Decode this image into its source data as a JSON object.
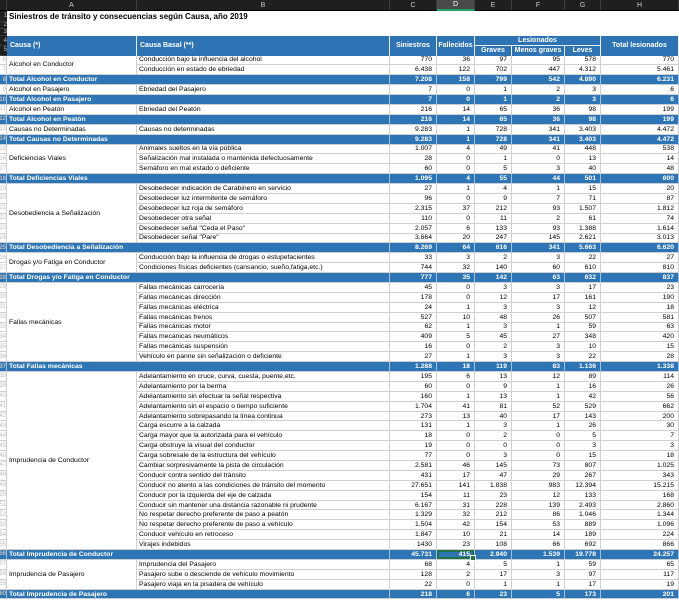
{
  "app": {
    "kind": "spreadsheet"
  },
  "column_bar": {
    "letters": [
      "A",
      "B",
      "C",
      "D",
      "E",
      "F",
      "G",
      "H"
    ],
    "selected": "D"
  },
  "title": "Siniestros de tránsito y consecuencias según Causa, año 2019",
  "colors": {
    "header_blue": "#2e74b5",
    "total_blue": "#2e75b6",
    "selection_green": "#217346",
    "bar_dark": "#1f1f1f",
    "gridline": "#d0d0d0"
  },
  "table": {
    "headers": {
      "causa": "Causa (*)",
      "causa_basal": "Causa Basal (**)",
      "siniestros": "Siniestros",
      "fallecidos": "Fallecidos",
      "lesionados": "Lesionados",
      "graves": "Graves",
      "menos_graves": "Menos graves",
      "leves": "Leves",
      "total_lesionados": "Total lesionados"
    },
    "groups": [
      {
        "causa": "Alcohol en Conductor",
        "rows": [
          [
            "Conducción bajo la influencia del alcohol",
            "770",
            "36",
            "97",
            "95",
            "578",
            "770"
          ],
          [
            "Conducción en estado de ebriedad",
            "6.438",
            "122",
            "702",
            "447",
            "4.312",
            "5.461"
          ]
        ],
        "total": [
          "Total Alcohol en Conductor",
          "7.208",
          "158",
          "799",
          "542",
          "4.890",
          "6.231"
        ]
      },
      {
        "causa": "Alcohol en Pasajero",
        "rows": [
          [
            "Ebriedad del Pasajero",
            "7",
            "0",
            "1",
            "2",
            "3",
            "6"
          ]
        ],
        "total": [
          "Total Alcohol en Pasajero",
          "7",
          "0",
          "1",
          "2",
          "3",
          "6"
        ]
      },
      {
        "causa": "Alcohol en Peatón",
        "rows": [
          [
            "Ebriedad del Peatón",
            "216",
            "14",
            "65",
            "36",
            "98",
            "199"
          ]
        ],
        "total": [
          "Total Alcohol en Peatón",
          "216",
          "14",
          "65",
          "36",
          "98",
          "199"
        ]
      },
      {
        "causa": "Causas no Determinadas",
        "rows": [
          [
            "Causas no determinadas",
            "9.283",
            "1",
            "728",
            "341",
            "3.403",
            "4.472"
          ]
        ],
        "total": [
          "Total Causas no Determinadas",
          "9.283",
          "1",
          "728",
          "341",
          "3.403",
          "4.472"
        ]
      },
      {
        "causa": "Deficiencias Viales",
        "rows": [
          [
            "Animales sueltos en la vía pública",
            "1.007",
            "4",
            "49",
            "41",
            "448",
            "538"
          ],
          [
            "Señalización mal instalada o mantenida defectuosamente",
            "28",
            "0",
            "1",
            "0",
            "13",
            "14"
          ],
          [
            "Semáforo en mal estado o deficiente",
            "60",
            "0",
            "5",
            "3",
            "40",
            "48"
          ]
        ],
        "total": [
          "Total Deficiencias Viales",
          "1.095",
          "4",
          "55",
          "44",
          "501",
          "600"
        ]
      },
      {
        "causa": "Desobediencia a Señalización",
        "rows": [
          [
            "Desobedecer indicación de Carabinero en servicio",
            "27",
            "1",
            "4",
            "1",
            "15",
            "20"
          ],
          [
            "Desobedecer luz intermitente de semáforo",
            "96",
            "0",
            "9",
            "7",
            "71",
            "87"
          ],
          [
            "Desobedecer luz roja de semáforo",
            "2.315",
            "37",
            "212",
            "93",
            "1.507",
            "1.812"
          ],
          [
            "Desobedecer otra señal",
            "110",
            "0",
            "11",
            "2",
            "61",
            "74"
          ],
          [
            "Desobedecer señal \"Ceda el Paso\"",
            "2.057",
            "6",
            "133",
            "93",
            "1.388",
            "1.614"
          ],
          [
            "Desobedecer señal \"Pare\"",
            "3.664",
            "20",
            "247",
            "145",
            "2.621",
            "3.013"
          ]
        ],
        "total": [
          "Total Desobediencia a Señalización",
          "8.269",
          "64",
          "616",
          "341",
          "5.663",
          "6.620"
        ]
      },
      {
        "causa": "Drogas y/o Fatiga en Conductor",
        "rows": [
          [
            "Conducción bajo la influencia de drogas o estupefacientes",
            "33",
            "3",
            "2",
            "3",
            "22",
            "27"
          ],
          [
            "Condiciones físicas deficientes (cansancio, sueño,fatiga,etc.)",
            "744",
            "32",
            "140",
            "60",
            "610",
            "810"
          ]
        ],
        "total": [
          "Total Drogas y/o Fatiga en Conductor",
          "777",
          "35",
          "142",
          "63",
          "632",
          "837"
        ]
      },
      {
        "causa": "Fallas mecánicas",
        "rows": [
          [
            "Fallas mecánicas carrocería",
            "45",
            "0",
            "3",
            "3",
            "17",
            "23"
          ],
          [
            "Fallas mecánicas dirección",
            "178",
            "0",
            "12",
            "17",
            "161",
            "190"
          ],
          [
            "Fallas mecánicas eléctrica",
            "24",
            "1",
            "3",
            "3",
            "12",
            "18"
          ],
          [
            "Fallas mecánicas frenos",
            "527",
            "10",
            "48",
            "26",
            "507",
            "581"
          ],
          [
            "Fallas mecánicas motor",
            "62",
            "1",
            "3",
            "1",
            "59",
            "63"
          ],
          [
            "Fallas mecánicas neumáticos",
            "409",
            "5",
            "45",
            "27",
            "348",
            "420"
          ],
          [
            "Fallas mecánicas suspensión",
            "16",
            "0",
            "2",
            "3",
            "10",
            "15"
          ],
          [
            "Vehículo en panne sin señalización o deficiente",
            "27",
            "1",
            "3",
            "3",
            "22",
            "28"
          ]
        ],
        "total": [
          "Total Fallas mecánicas",
          "1.288",
          "18",
          "119",
          "83",
          "1.136",
          "1.338"
        ]
      },
      {
        "causa": "Imprudencia de Conductor",
        "rows": [
          [
            "Adelantamiento en cruce, curva, cuesta, puente,etc.",
            "195",
            "6",
            "13",
            "12",
            "89",
            "114"
          ],
          [
            "Adelantamiento por la berma",
            "60",
            "0",
            "9",
            "1",
            "16",
            "26"
          ],
          [
            "Adelantamiento sin efectuar la señal respectiva",
            "160",
            "1",
            "13",
            "1",
            "42",
            "56"
          ],
          [
            "Adelantamiento sin el espacio o tiempo suficiente",
            "1.704",
            "41",
            "81",
            "52",
            "529",
            "662"
          ],
          [
            "Adelantamiento sobrepasando la línea continua",
            "273",
            "13",
            "40",
            "17",
            "143",
            "200"
          ],
          [
            "Carga escurre a la calzada",
            "131",
            "1",
            "3",
            "1",
            "26",
            "30"
          ],
          [
            "Carga mayor que la autorizada para el vehículo",
            "18",
            "0",
            "2",
            "0",
            "5",
            "7"
          ],
          [
            "Carga obstruye la visual del conductor",
            "19",
            "0",
            "0",
            "0",
            "3",
            "3"
          ],
          [
            "Carga sobresale de la estructura del vehículo",
            "77",
            "0",
            "3",
            "0",
            "15",
            "18"
          ],
          [
            "Cambiar sorpresivamente la pista de circulación",
            "2.581",
            "46",
            "145",
            "73",
            "807",
            "1.025"
          ],
          [
            "Conducir contra sentido del tránsito",
            "431",
            "17",
            "47",
            "29",
            "267",
            "343"
          ],
          [
            "Conducir no atento a las condiciones de tránsito del momento",
            "27.651",
            "141",
            "1.838",
            "983",
            "12.394",
            "15.215"
          ],
          [
            "Conducir por la izquierda del eje de calzada",
            "154",
            "11",
            "23",
            "12",
            "133",
            "168"
          ],
          [
            "Conducir sin mantener una distancia razonable ni prudente",
            "6.167",
            "31",
            "228",
            "139",
            "2.493",
            "2.860"
          ],
          [
            "No respetar derecho preferente de paso a peatón",
            "1.329",
            "32",
            "212",
            "86",
            "1.046",
            "1.344"
          ],
          [
            "No respetar derecho preferente de paso a vehículo",
            "1.504",
            "42",
            "154",
            "53",
            "889",
            "1.096"
          ],
          [
            "Conducir vehículo en retroceso",
            "1.847",
            "10",
            "21",
            "14",
            "189",
            "224"
          ],
          [
            "Virajes indebidos",
            "1430",
            "23",
            "108",
            "66",
            "692",
            "866"
          ]
        ],
        "total": [
          "Total Imprudencia de Conductor",
          "45.731",
          "415",
          "2.940",
          "1.539",
          "19.778",
          "24.257"
        ]
      },
      {
        "causa": "Imprudencia de Pasajero",
        "rows": [
          [
            "Imprudencia del Pasajero",
            "68",
            "4",
            "5",
            "1",
            "59",
            "65"
          ],
          [
            "Pasajero sube o desciende de vehículo movimiento",
            "128",
            "2",
            "17",
            "3",
            "97",
            "117"
          ],
          [
            "Pasajero viaja en la pisadera de vehículo",
            "22",
            "0",
            "1",
            "1",
            "17",
            "19"
          ]
        ],
        "total": [
          "Total Imprudencia de Pasajero",
          "218",
          "6",
          "23",
          "5",
          "173",
          "201"
        ]
      }
    ]
  },
  "selection": {
    "group_index": 8,
    "on": "total",
    "total_column_index": 2,
    "value": "415",
    "column_letter": "D"
  }
}
